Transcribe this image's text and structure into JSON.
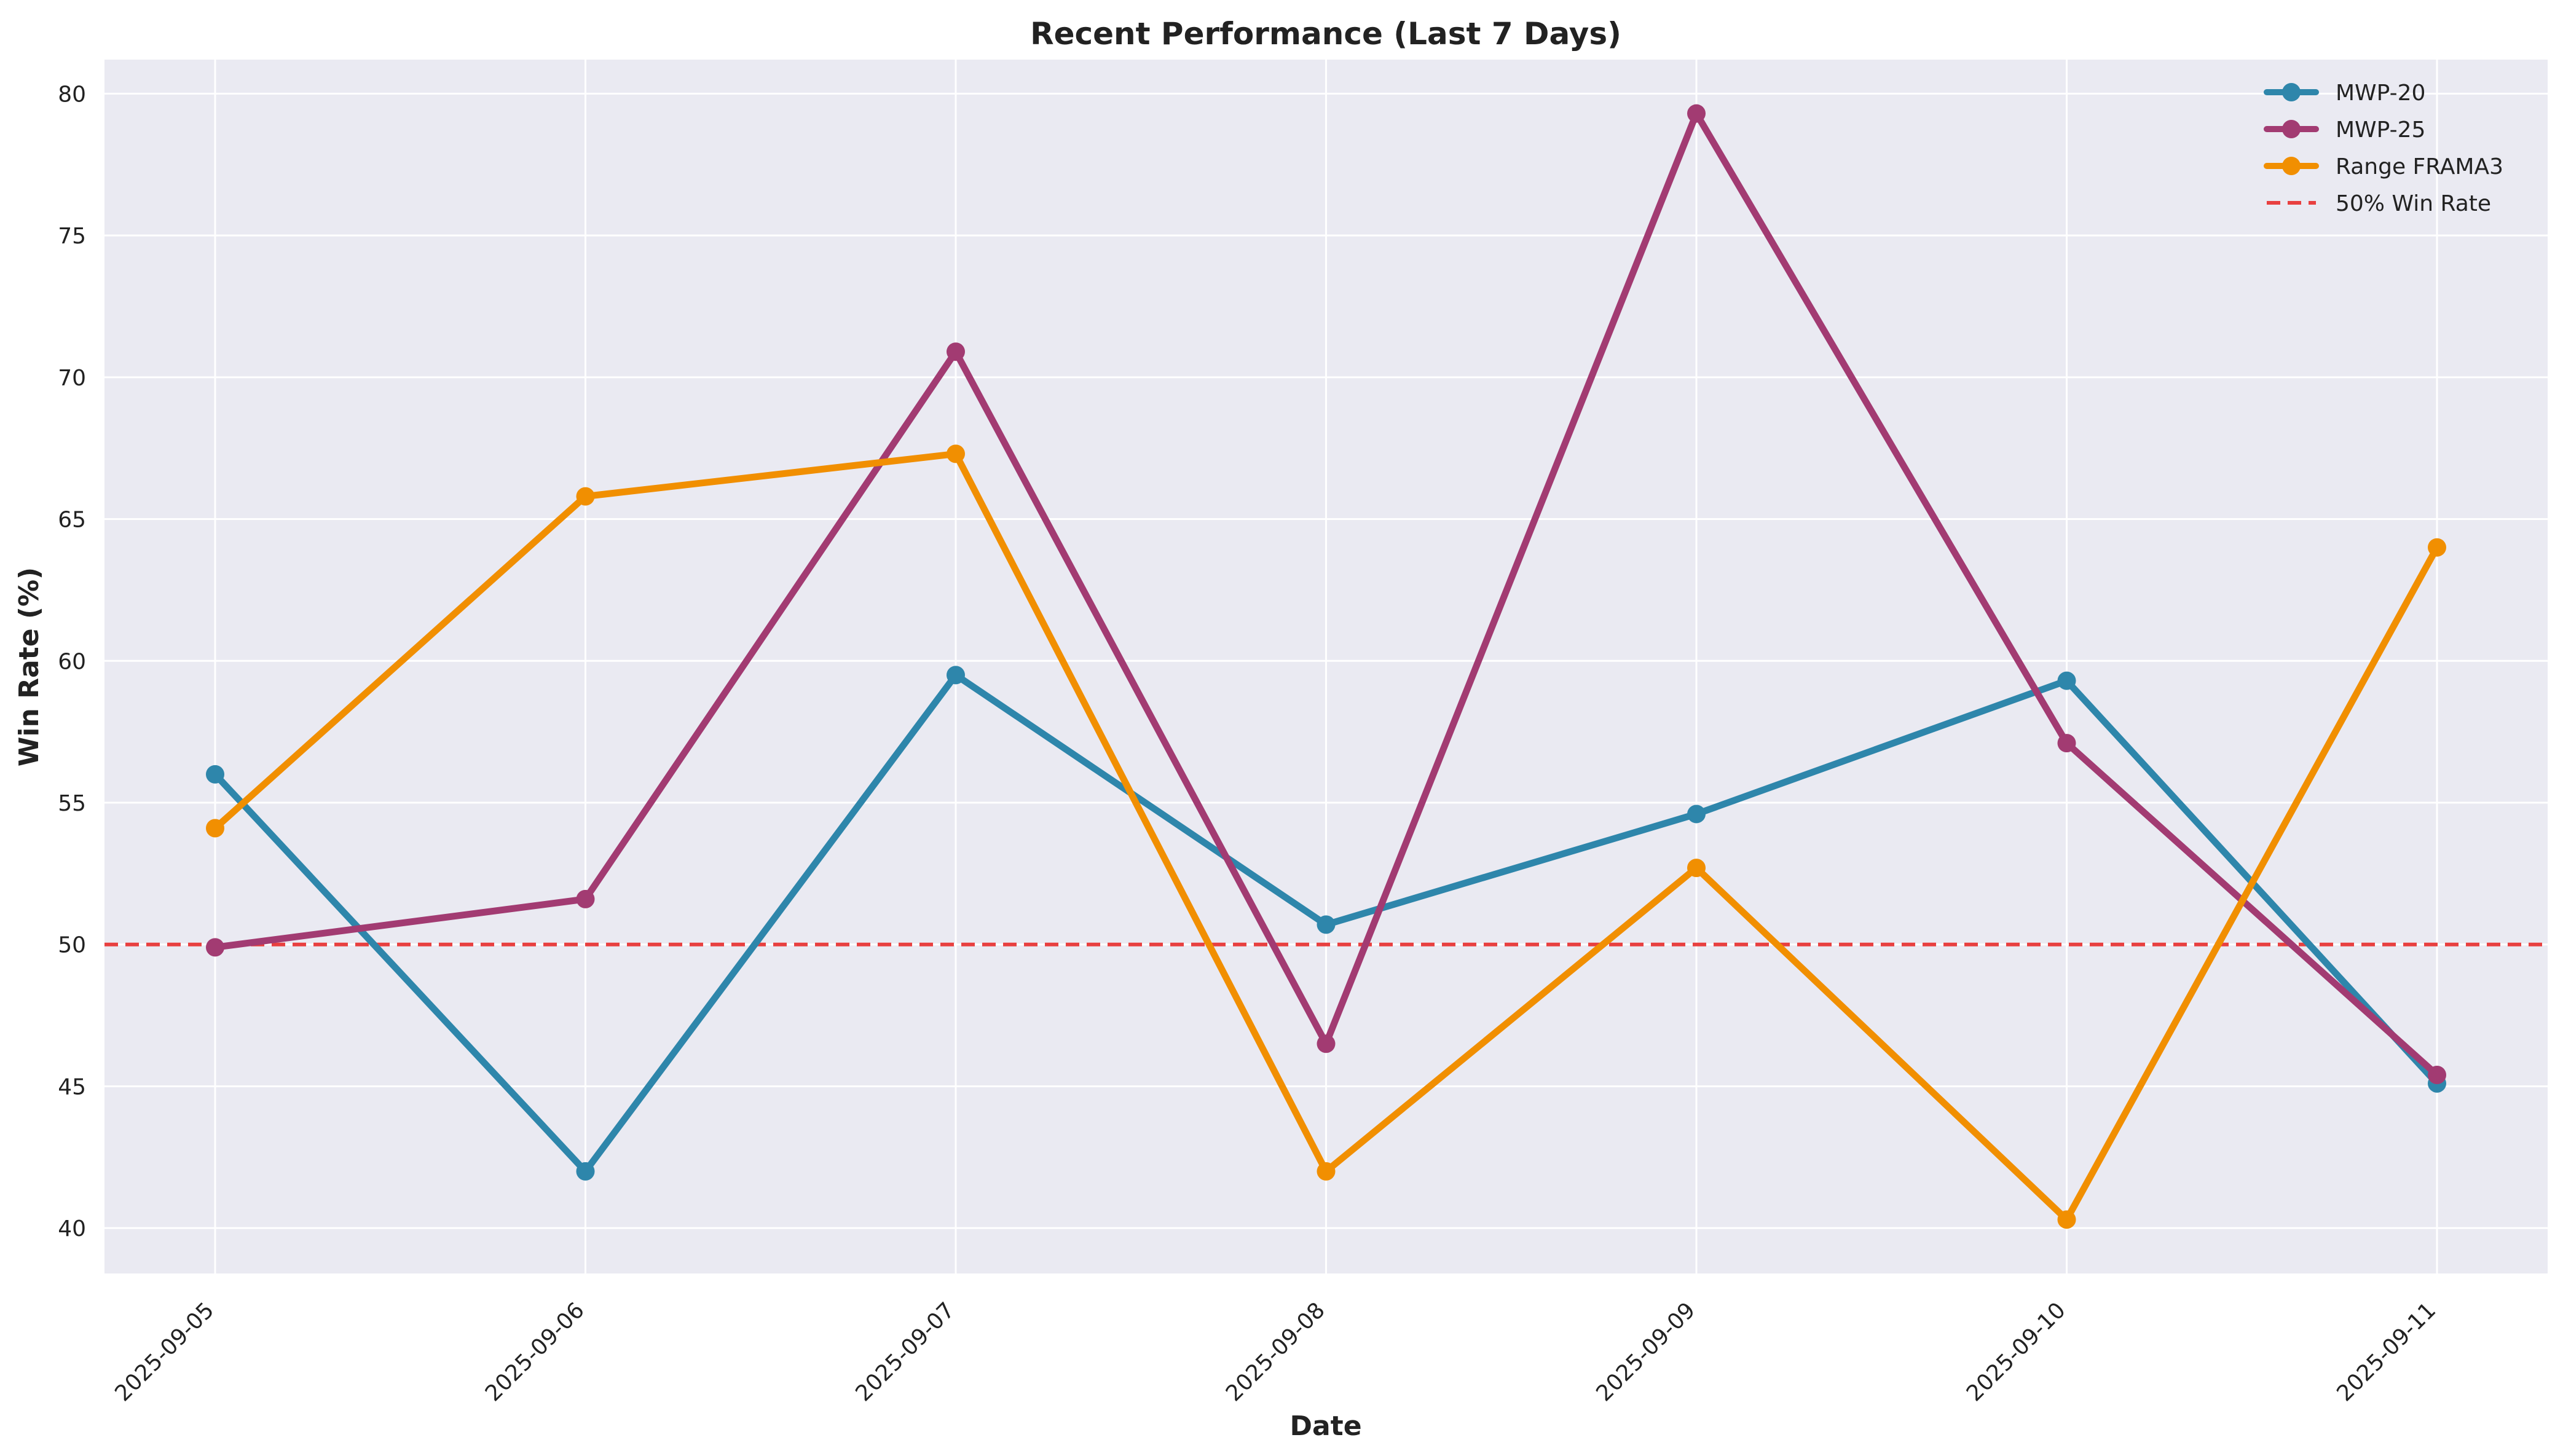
{
  "chart_data": {
    "type": "line",
    "title": "Recent Performance (Last 7 Days)",
    "xlabel": "Date",
    "ylabel": "Win Rate (%)",
    "x": [
      "2025-09-05",
      "2025-09-06",
      "2025-09-07",
      "2025-09-08",
      "2025-09-09",
      "2025-09-10",
      "2025-09-11"
    ],
    "ylim": [
      38.4,
      81.2
    ],
    "yticks": [
      "40",
      "45",
      "50",
      "55",
      "60",
      "65",
      "70",
      "75",
      "80"
    ],
    "grid": true,
    "legend_position": "top-right",
    "series": [
      {
        "name": "MWP-20",
        "color": "#2e86ab",
        "values": [
          56.0,
          42.0,
          59.5,
          50.7,
          54.6,
          59.3,
          45.1
        ]
      },
      {
        "name": "MWP-25",
        "color": "#a23b72",
        "values": [
          49.9,
          51.6,
          70.9,
          46.5,
          79.3,
          57.1,
          45.4
        ]
      },
      {
        "name": "Range FRAMA3",
        "color": "#f18f01",
        "values": [
          54.1,
          65.8,
          67.3,
          42.0,
          52.7,
          40.3,
          64.0
        ]
      }
    ],
    "reference_lines": [
      {
        "name": "50% Win Rate",
        "y": 50,
        "color": "#e84040",
        "style": "dashed"
      }
    ],
    "background_color": "#eaeaf2"
  }
}
